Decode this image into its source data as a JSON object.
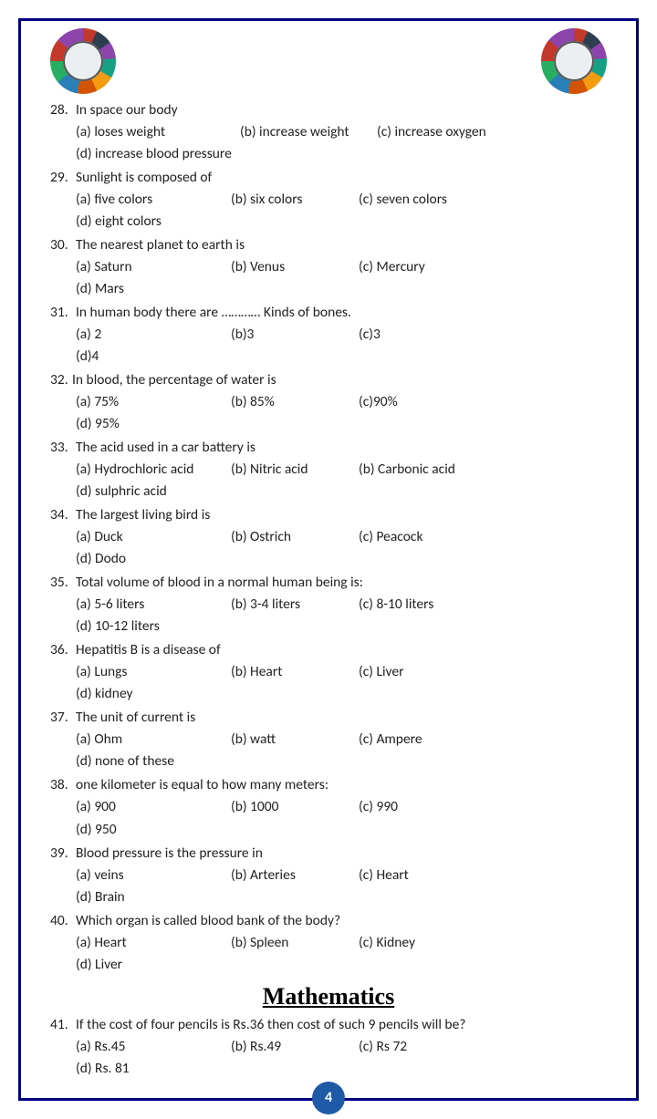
{
  "page_number": "4",
  "section": {
    "heading": "Mathematics"
  },
  "questions": [
    {
      "num": "28.",
      "text": "In space our body",
      "opts": [
        {
          "t": "(a) loses weight",
          "cls": "w1"
        },
        {
          "t": "(b) increase weight",
          "cls": "w3"
        },
        {
          "t": "(c) increase oxygen",
          "cls": "w4"
        }
      ],
      "opts2": [
        {
          "t": "(d) increase blood pressure",
          "cls": ""
        }
      ]
    },
    {
      "num": "29.",
      "text": "Sunlight is composed of",
      "opts": [
        {
          "t": "(a) five colors",
          "cls": "wa"
        },
        {
          "t": "(b) six colors",
          "cls": "wb"
        },
        {
          "t": "(c) seven colors",
          "cls": "wc"
        },
        {
          "t": "(d) eight colors",
          "cls": "wd"
        }
      ]
    },
    {
      "num": "30.",
      "text": "The nearest planet to earth is",
      "opts": [
        {
          "t": "(a) Saturn",
          "cls": "wa"
        },
        {
          "t": "(b) Venus",
          "cls": "wb"
        },
        {
          "t": "(c) Mercury",
          "cls": "wc"
        },
        {
          "t": "(d) Mars",
          "cls": "wd"
        }
      ]
    },
    {
      "num": "31.",
      "text": "In human body there are ………… Kinds of bones.",
      "opts": [
        {
          "t": "(a) 2",
          "cls": "wa"
        },
        {
          "t": "(b)3",
          "cls": "wb"
        },
        {
          "t": "(c)3",
          "cls": "wc"
        },
        {
          "t": "(d)4",
          "cls": "wd"
        }
      ]
    },
    {
      "num": "32.",
      "text": "In blood, the percentage of water is",
      "tight": true,
      "opts": [
        {
          "t": "(a) 75%",
          "cls": "wa"
        },
        {
          "t": "(b) 85%",
          "cls": "wb"
        },
        {
          "t": "(c)90%",
          "cls": "wc"
        },
        {
          "t": "(d) 95%",
          "cls": "wd"
        }
      ]
    },
    {
      "num": "33.",
      "text": "The acid used in a car battery is",
      "opts": [
        {
          "t": "(a) Hydrochloric acid",
          "cls": "wa"
        },
        {
          "t": "(b) Nitric acid",
          "cls": "wb"
        },
        {
          "t": "(b) Carbonic acid",
          "cls": "wc"
        },
        {
          "t": "(d) sulphric acid",
          "cls": "wd"
        }
      ]
    },
    {
      "num": "34.",
      "text": "The largest living bird is",
      "opts": [
        {
          "t": "(a) Duck",
          "cls": "wa"
        },
        {
          "t": "(b) Ostrich",
          "cls": "wb"
        },
        {
          "t": "(c) Peacock",
          "cls": "wc"
        },
        {
          "t": "(d) Dodo",
          "cls": "wd"
        }
      ]
    },
    {
      "num": "35.",
      "text": "Total volume of blood in a normal human being is:",
      "opts": [
        {
          "t": "(a) 5-6 liters",
          "cls": "wa"
        },
        {
          "t": "(b) 3-4 liters",
          "cls": "wb"
        },
        {
          "t": "(c) 8-10 liters",
          "cls": "wc"
        },
        {
          "t": "(d) 10-12 liters",
          "cls": "wd"
        }
      ]
    },
    {
      "num": "36.",
      "text": "Hepatitis B is a disease of",
      "opts": [
        {
          "t": "(a) Lungs",
          "cls": "wa"
        },
        {
          "t": "(b) Heart",
          "cls": "wb"
        },
        {
          "t": "(c) Liver",
          "cls": "wc"
        },
        {
          "t": "(d) kidney",
          "cls": "wd"
        }
      ]
    },
    {
      "num": "37.",
      "text": "The unit of current is",
      "opts": [
        {
          "t": "(a) Ohm",
          "cls": "wa"
        },
        {
          "t": "(b) watt",
          "cls": "wb"
        },
        {
          "t": "(c) Ampere",
          "cls": "wc"
        },
        {
          "t": "(d) none of these",
          "cls": "wd"
        }
      ]
    },
    {
      "num": "38.",
      "text": "one kilometer is equal to how many meters:",
      "opts": [
        {
          "t": "(a) 900",
          "cls": "wa"
        },
        {
          "t": "(b) 1000",
          "cls": "wb"
        },
        {
          "t": "(c) 990",
          "cls": "wc"
        },
        {
          "t": "(d) 950",
          "cls": "wd"
        }
      ]
    },
    {
      "num": "39.",
      "text": "Blood pressure is the pressure in",
      "opts": [
        {
          "t": "(a) veins",
          "cls": "wa"
        },
        {
          "t": "(b) Arteries",
          "cls": "wb"
        },
        {
          "t": "(c) Heart",
          "cls": "wc"
        },
        {
          "t": "(d) Brain",
          "cls": "wd"
        }
      ]
    },
    {
      "num": "40.",
      "text": "Which organ is called blood bank of the body?",
      "opts": [
        {
          "t": "(a) Heart",
          "cls": "wa"
        },
        {
          "t": "(b) Spleen",
          "cls": "wb"
        },
        {
          "t": "(c) Kidney",
          "cls": "wc"
        },
        {
          "t": "(d) Liver",
          "cls": "wd"
        }
      ]
    }
  ],
  "math_questions": [
    {
      "num": "41.",
      "text": "If the cost of four pencils is Rs.36 then cost of such 9 pencils will be?",
      "opts": [
        {
          "t": "(a) Rs.45",
          "cls": "wa"
        },
        {
          "t": "(b) Rs.49",
          "cls": "wb"
        },
        {
          "t": "(c) Rs 72",
          "cls": "wc"
        },
        {
          "t": "(d) Rs. 81",
          "cls": "wd"
        }
      ]
    }
  ]
}
